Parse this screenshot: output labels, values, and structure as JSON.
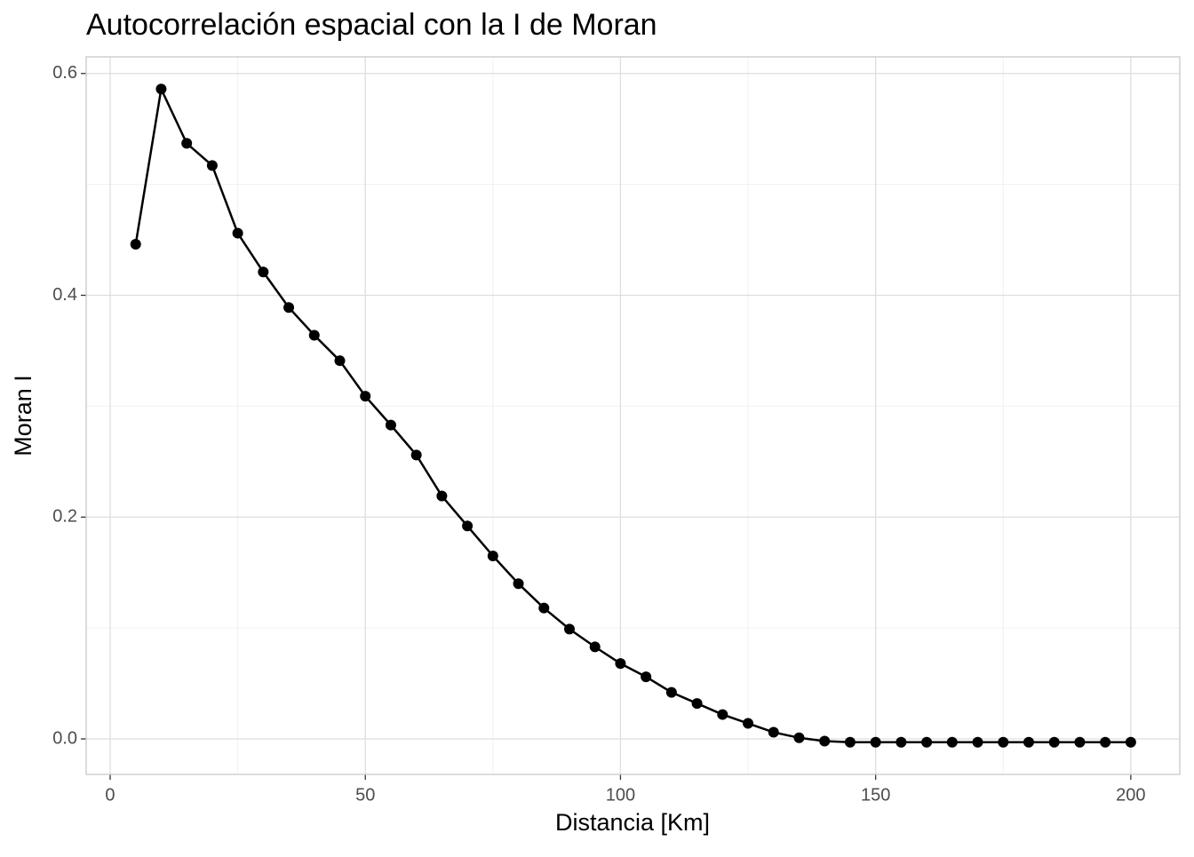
{
  "chart_data": {
    "type": "line",
    "title": "Autocorrelación espacial con la I de Moran",
    "x_label": "Distancia [Km]",
    "y_label": "Moran I",
    "x": [
      5,
      10,
      15,
      20,
      25,
      30,
      35,
      40,
      45,
      50,
      55,
      60,
      65,
      70,
      75,
      80,
      85,
      90,
      95,
      100,
      105,
      110,
      115,
      120,
      125,
      130,
      135,
      140,
      145,
      150,
      155,
      160,
      165,
      170,
      175,
      180,
      185,
      190,
      195,
      200
    ],
    "values": [
      0.446,
      0.586,
      0.537,
      0.517,
      0.456,
      0.421,
      0.389,
      0.364,
      0.341,
      0.309,
      0.283,
      0.256,
      0.219,
      0.192,
      0.165,
      0.14,
      0.118,
      0.099,
      0.083,
      0.068,
      0.056,
      0.042,
      0.032,
      0.022,
      0.014,
      0.006,
      0.001,
      -0.002,
      -0.003,
      -0.003,
      -0.003,
      -0.003,
      -0.003,
      -0.003,
      -0.003,
      -0.003,
      -0.003,
      -0.003,
      -0.003,
      -0.003
    ],
    "color": "#000000",
    "xlim": [
      -4.7,
      209.6
    ],
    "ylim": [
      -0.032,
      0.615
    ],
    "xticks": [
      0,
      50,
      100,
      150,
      200
    ],
    "yticks": [
      {
        "value": 0,
        "label": "0.0"
      },
      0.2,
      0.4,
      0.6
    ],
    "grid": true
  }
}
